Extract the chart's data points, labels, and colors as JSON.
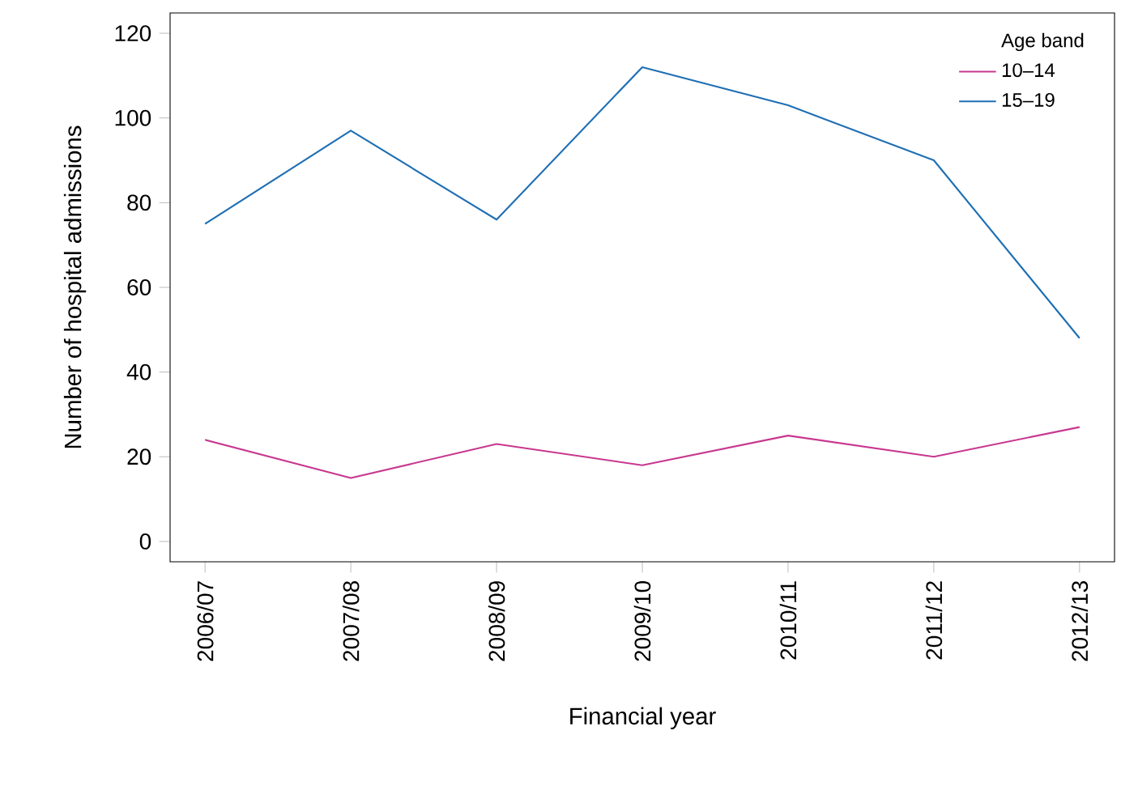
{
  "chart_data": {
    "type": "line",
    "xlabel": "Financial year",
    "ylabel": "Number of hospital admissions",
    "legend_title": "Age band",
    "legend": "top right",
    "categories": [
      "2006/07",
      "2007/08",
      "2008/09",
      "2009/10",
      "2010/11",
      "2011/12",
      "2012/13"
    ],
    "series": [
      {
        "name": "10–14",
        "color": "#c8388f",
        "values": [
          24,
          15,
          23,
          18,
          25,
          20,
          27
        ]
      },
      {
        "name": "15–19",
        "color": "#1f6fb4",
        "values": [
          75,
          97,
          76,
          112,
          103,
          90,
          48
        ]
      }
    ],
    "ylim": [
      -4.8,
      124.8
    ],
    "yticks": [
      0,
      20,
      40,
      60,
      80,
      100,
      120
    ]
  }
}
